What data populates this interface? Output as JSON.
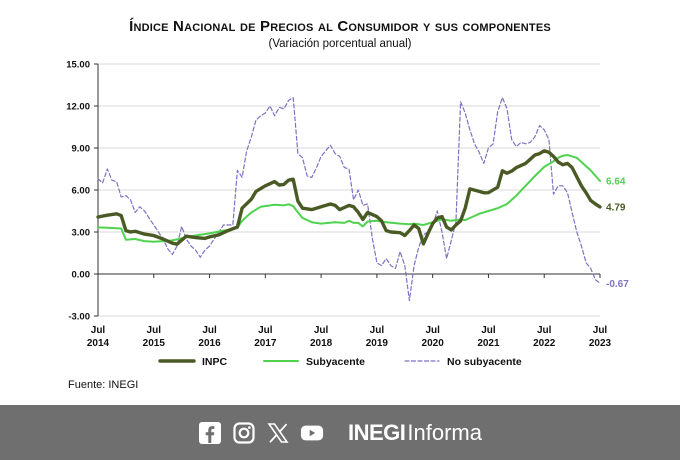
{
  "chart_data": {
    "type": "line",
    "title": "Índice Nacional de Precios al Consumidor y sus componentes",
    "subtitle": "(Variación porcentual anual)",
    "ylim": [
      -3.0,
      15.0
    ],
    "y_ticks": [
      "15.00",
      "12.00",
      "9.00",
      "6.00",
      "3.00",
      "0.00",
      "-3.00"
    ],
    "x_tick_labels": [
      {
        "month": "Jul",
        "year": "2014",
        "x": 0
      },
      {
        "month": "Jul",
        "year": "2015",
        "x": 12
      },
      {
        "month": "Jul",
        "year": "2016",
        "x": 24
      },
      {
        "month": "Jul",
        "year": "2017",
        "x": 36
      },
      {
        "month": "Jul",
        "year": "2018",
        "x": 48
      },
      {
        "month": "Jul",
        "year": "2019",
        "x": 60
      },
      {
        "month": "Jul",
        "year": "2020",
        "x": 72
      },
      {
        "month": "Jul",
        "year": "2021",
        "x": 84
      },
      {
        "month": "Jul",
        "year": "2022",
        "x": 96
      },
      {
        "month": "Jul",
        "year": "2023",
        "x": 108
      }
    ],
    "x_range": [
      0,
      108
    ],
    "grid": "horizontal",
    "legend_position": "bottom",
    "series": [
      {
        "name": "INPC",
        "color": "#4a5a24",
        "style": "solid-thick",
        "end_label": "4.79",
        "points": [
          [
            0,
            4.07
          ],
          [
            2,
            4.2
          ],
          [
            4,
            4.3
          ],
          [
            5,
            4.17
          ],
          [
            6,
            3.1
          ],
          [
            7,
            3.0
          ],
          [
            8,
            3.05
          ],
          [
            10,
            2.85
          ],
          [
            12,
            2.74
          ],
          [
            14,
            2.5
          ],
          [
            16,
            2.2
          ],
          [
            17,
            2.13
          ],
          [
            19,
            2.7
          ],
          [
            21,
            2.6
          ],
          [
            23,
            2.54
          ],
          [
            24,
            2.65
          ],
          [
            26,
            2.8
          ],
          [
            28,
            3.1
          ],
          [
            30,
            3.36
          ],
          [
            31,
            4.7
          ],
          [
            33,
            5.35
          ],
          [
            34,
            5.9
          ],
          [
            36,
            6.3
          ],
          [
            37,
            6.45
          ],
          [
            38,
            6.6
          ],
          [
            39,
            6.35
          ],
          [
            40,
            6.4
          ],
          [
            41,
            6.7
          ],
          [
            42,
            6.77
          ],
          [
            43,
            5.2
          ],
          [
            44,
            4.7
          ],
          [
            46,
            4.6
          ],
          [
            48,
            4.81
          ],
          [
            50,
            5.0
          ],
          [
            51,
            4.9
          ],
          [
            52,
            4.6
          ],
          [
            53,
            4.75
          ],
          [
            54,
            4.9
          ],
          [
            55,
            4.8
          ],
          [
            56,
            4.4
          ],
          [
            57,
            3.9
          ],
          [
            58,
            4.4
          ],
          [
            60,
            4.1
          ],
          [
            61,
            3.8
          ],
          [
            62,
            3.1
          ],
          [
            63,
            3.0
          ],
          [
            65,
            2.95
          ],
          [
            66,
            2.75
          ],
          [
            67,
            3.1
          ],
          [
            68,
            3.5
          ],
          [
            69,
            3.25
          ],
          [
            70,
            2.15
          ],
          [
            71,
            2.9
          ],
          [
            72,
            3.6
          ],
          [
            73,
            4.0
          ],
          [
            74,
            4.1
          ],
          [
            75,
            3.35
          ],
          [
            76,
            3.15
          ],
          [
            77,
            3.5
          ],
          [
            78,
            3.8
          ],
          [
            79,
            4.7
          ],
          [
            80,
            6.08
          ],
          [
            82,
            5.9
          ],
          [
            83,
            5.8
          ],
          [
            84,
            5.81
          ],
          [
            86,
            6.2
          ],
          [
            87,
            7.37
          ],
          [
            88,
            7.2
          ],
          [
            89,
            7.35
          ],
          [
            90,
            7.6
          ],
          [
            92,
            7.9
          ],
          [
            93,
            8.2
          ],
          [
            94,
            8.5
          ],
          [
            95,
            8.6
          ],
          [
            96,
            8.8
          ],
          [
            97,
            8.7
          ],
          [
            98,
            8.4
          ],
          [
            99,
            8.0
          ],
          [
            100,
            7.8
          ],
          [
            101,
            7.9
          ],
          [
            102,
            7.6
          ],
          [
            104,
            6.3
          ],
          [
            105,
            5.8
          ],
          [
            106,
            5.25
          ],
          [
            107,
            5.0
          ],
          [
            108,
            4.79
          ]
        ]
      },
      {
        "name": "Subyacente",
        "color": "#4fd34f",
        "style": "solid",
        "end_label": "6.64",
        "points": [
          [
            0,
            3.33
          ],
          [
            2,
            3.3
          ],
          [
            5,
            3.25
          ],
          [
            6,
            2.45
          ],
          [
            8,
            2.5
          ],
          [
            10,
            2.35
          ],
          [
            12,
            2.3
          ],
          [
            14,
            2.35
          ],
          [
            16,
            2.4
          ],
          [
            18,
            2.55
          ],
          [
            21,
            2.75
          ],
          [
            24,
            2.9
          ],
          [
            27,
            3.1
          ],
          [
            29,
            3.2
          ],
          [
            30,
            3.3
          ],
          [
            31,
            3.8
          ],
          [
            33,
            4.4
          ],
          [
            35,
            4.8
          ],
          [
            38,
            4.95
          ],
          [
            40,
            4.9
          ],
          [
            41,
            4.98
          ],
          [
            42,
            4.85
          ],
          [
            43,
            4.4
          ],
          [
            44,
            4.0
          ],
          [
            46,
            3.7
          ],
          [
            48,
            3.6
          ],
          [
            51,
            3.7
          ],
          [
            53,
            3.65
          ],
          [
            54,
            3.8
          ],
          [
            55,
            3.65
          ],
          [
            56,
            3.65
          ],
          [
            57,
            3.4
          ],
          [
            58,
            3.75
          ],
          [
            60,
            3.8
          ],
          [
            62,
            3.7
          ],
          [
            65,
            3.6
          ],
          [
            67,
            3.55
          ],
          [
            68,
            3.6
          ],
          [
            70,
            3.5
          ],
          [
            72,
            3.7
          ],
          [
            74,
            3.9
          ],
          [
            76,
            3.8
          ],
          [
            78,
            3.9
          ],
          [
            79,
            3.85
          ],
          [
            80,
            4.0
          ],
          [
            82,
            4.3
          ],
          [
            84,
            4.5
          ],
          [
            86,
            4.7
          ],
          [
            88,
            5.0
          ],
          [
            90,
            5.6
          ],
          [
            92,
            6.3
          ],
          [
            94,
            7.0
          ],
          [
            96,
            7.65
          ],
          [
            98,
            8.05
          ],
          [
            99,
            8.3
          ],
          [
            100,
            8.45
          ],
          [
            101,
            8.5
          ],
          [
            102,
            8.4
          ],
          [
            103,
            8.3
          ],
          [
            104,
            8.0
          ],
          [
            106,
            7.4
          ],
          [
            108,
            6.64
          ]
        ]
      },
      {
        "name": "No subyacente",
        "color": "#7e72c4",
        "style": "dashed",
        "end_label": "-0.67",
        "points": [
          [
            0,
            6.8
          ],
          [
            1,
            6.5
          ],
          [
            2,
            7.5
          ],
          [
            3,
            6.7
          ],
          [
            4,
            6.6
          ],
          [
            5,
            5.5
          ],
          [
            6,
            5.6
          ],
          [
            7,
            5.3
          ],
          [
            8,
            4.4
          ],
          [
            9,
            4.8
          ],
          [
            10,
            4.5
          ],
          [
            11,
            4.0
          ],
          [
            12,
            3.5
          ],
          [
            13,
            3.0
          ],
          [
            14,
            2.5
          ],
          [
            15,
            1.8
          ],
          [
            16,
            1.4
          ],
          [
            17,
            2.0
          ],
          [
            18,
            3.4
          ],
          [
            19,
            2.5
          ],
          [
            20,
            2.0
          ],
          [
            21,
            1.7
          ],
          [
            22,
            1.2
          ],
          [
            23,
            1.7
          ],
          [
            24,
            2.0
          ],
          [
            25,
            2.5
          ],
          [
            26,
            3.0
          ],
          [
            27,
            3.5
          ],
          [
            29,
            3.5
          ],
          [
            30,
            7.4
          ],
          [
            31,
            6.9
          ],
          [
            32,
            8.8
          ],
          [
            33,
            9.8
          ],
          [
            34,
            11.0
          ],
          [
            35,
            11.3
          ],
          [
            36,
            11.5
          ],
          [
            37,
            12.0
          ],
          [
            38,
            11.3
          ],
          [
            39,
            11.9
          ],
          [
            40,
            11.8
          ],
          [
            41,
            12.4
          ],
          [
            42,
            12.6
          ],
          [
            43,
            8.6
          ],
          [
            44,
            8.3
          ],
          [
            45,
            7.0
          ],
          [
            46,
            6.9
          ],
          [
            47,
            7.6
          ],
          [
            48,
            8.4
          ],
          [
            49,
            8.8
          ],
          [
            50,
            9.2
          ],
          [
            51,
            8.6
          ],
          [
            52,
            8.4
          ],
          [
            53,
            7.6
          ],
          [
            54,
            7.5
          ],
          [
            55,
            5.3
          ],
          [
            56,
            6.0
          ],
          [
            57,
            4.9
          ],
          [
            58,
            5.0
          ],
          [
            59,
            2.6
          ],
          [
            60,
            0.8
          ],
          [
            61,
            0.6
          ],
          [
            62,
            1.1
          ],
          [
            63,
            0.6
          ],
          [
            64,
            0.4
          ],
          [
            65,
            1.6
          ],
          [
            66,
            0.6
          ],
          [
            67,
            -1.9
          ],
          [
            68,
            0.6
          ],
          [
            69,
            1.9
          ],
          [
            70,
            2.8
          ],
          [
            71,
            3.0
          ],
          [
            72,
            3.5
          ],
          [
            73,
            4.5
          ],
          [
            74,
            3.0
          ],
          [
            75,
            1.1
          ],
          [
            76,
            2.4
          ],
          [
            77,
            3.7
          ],
          [
            78,
            12.3
          ],
          [
            79,
            11.5
          ],
          [
            80,
            10.3
          ],
          [
            81,
            9.3
          ],
          [
            82,
            8.7
          ],
          [
            83,
            7.9
          ],
          [
            84,
            9.0
          ],
          [
            85,
            9.3
          ],
          [
            86,
            11.6
          ],
          [
            87,
            12.6
          ],
          [
            88,
            11.8
          ],
          [
            89,
            9.6
          ],
          [
            90,
            9.1
          ],
          [
            91,
            9.4
          ],
          [
            92,
            9.3
          ],
          [
            93,
            9.4
          ],
          [
            94,
            9.8
          ],
          [
            95,
            10.6
          ],
          [
            96,
            10.3
          ],
          [
            97,
            9.6
          ],
          [
            98,
            5.7
          ],
          [
            99,
            6.3
          ],
          [
            100,
            6.3
          ],
          [
            101,
            5.8
          ],
          [
            102,
            4.4
          ],
          [
            103,
            3.0
          ],
          [
            104,
            2.0
          ],
          [
            105,
            0.8
          ],
          [
            106,
            0.4
          ],
          [
            107,
            -0.4
          ],
          [
            108,
            -0.67
          ]
        ]
      }
    ],
    "source": "Fuente: INEGI"
  },
  "footer": {
    "brand_bold": "INEGI",
    "brand_light": "Informa",
    "icons": [
      "facebook-icon",
      "instagram-icon",
      "x-icon",
      "youtube-icon"
    ],
    "background": "#6f6f6f"
  }
}
